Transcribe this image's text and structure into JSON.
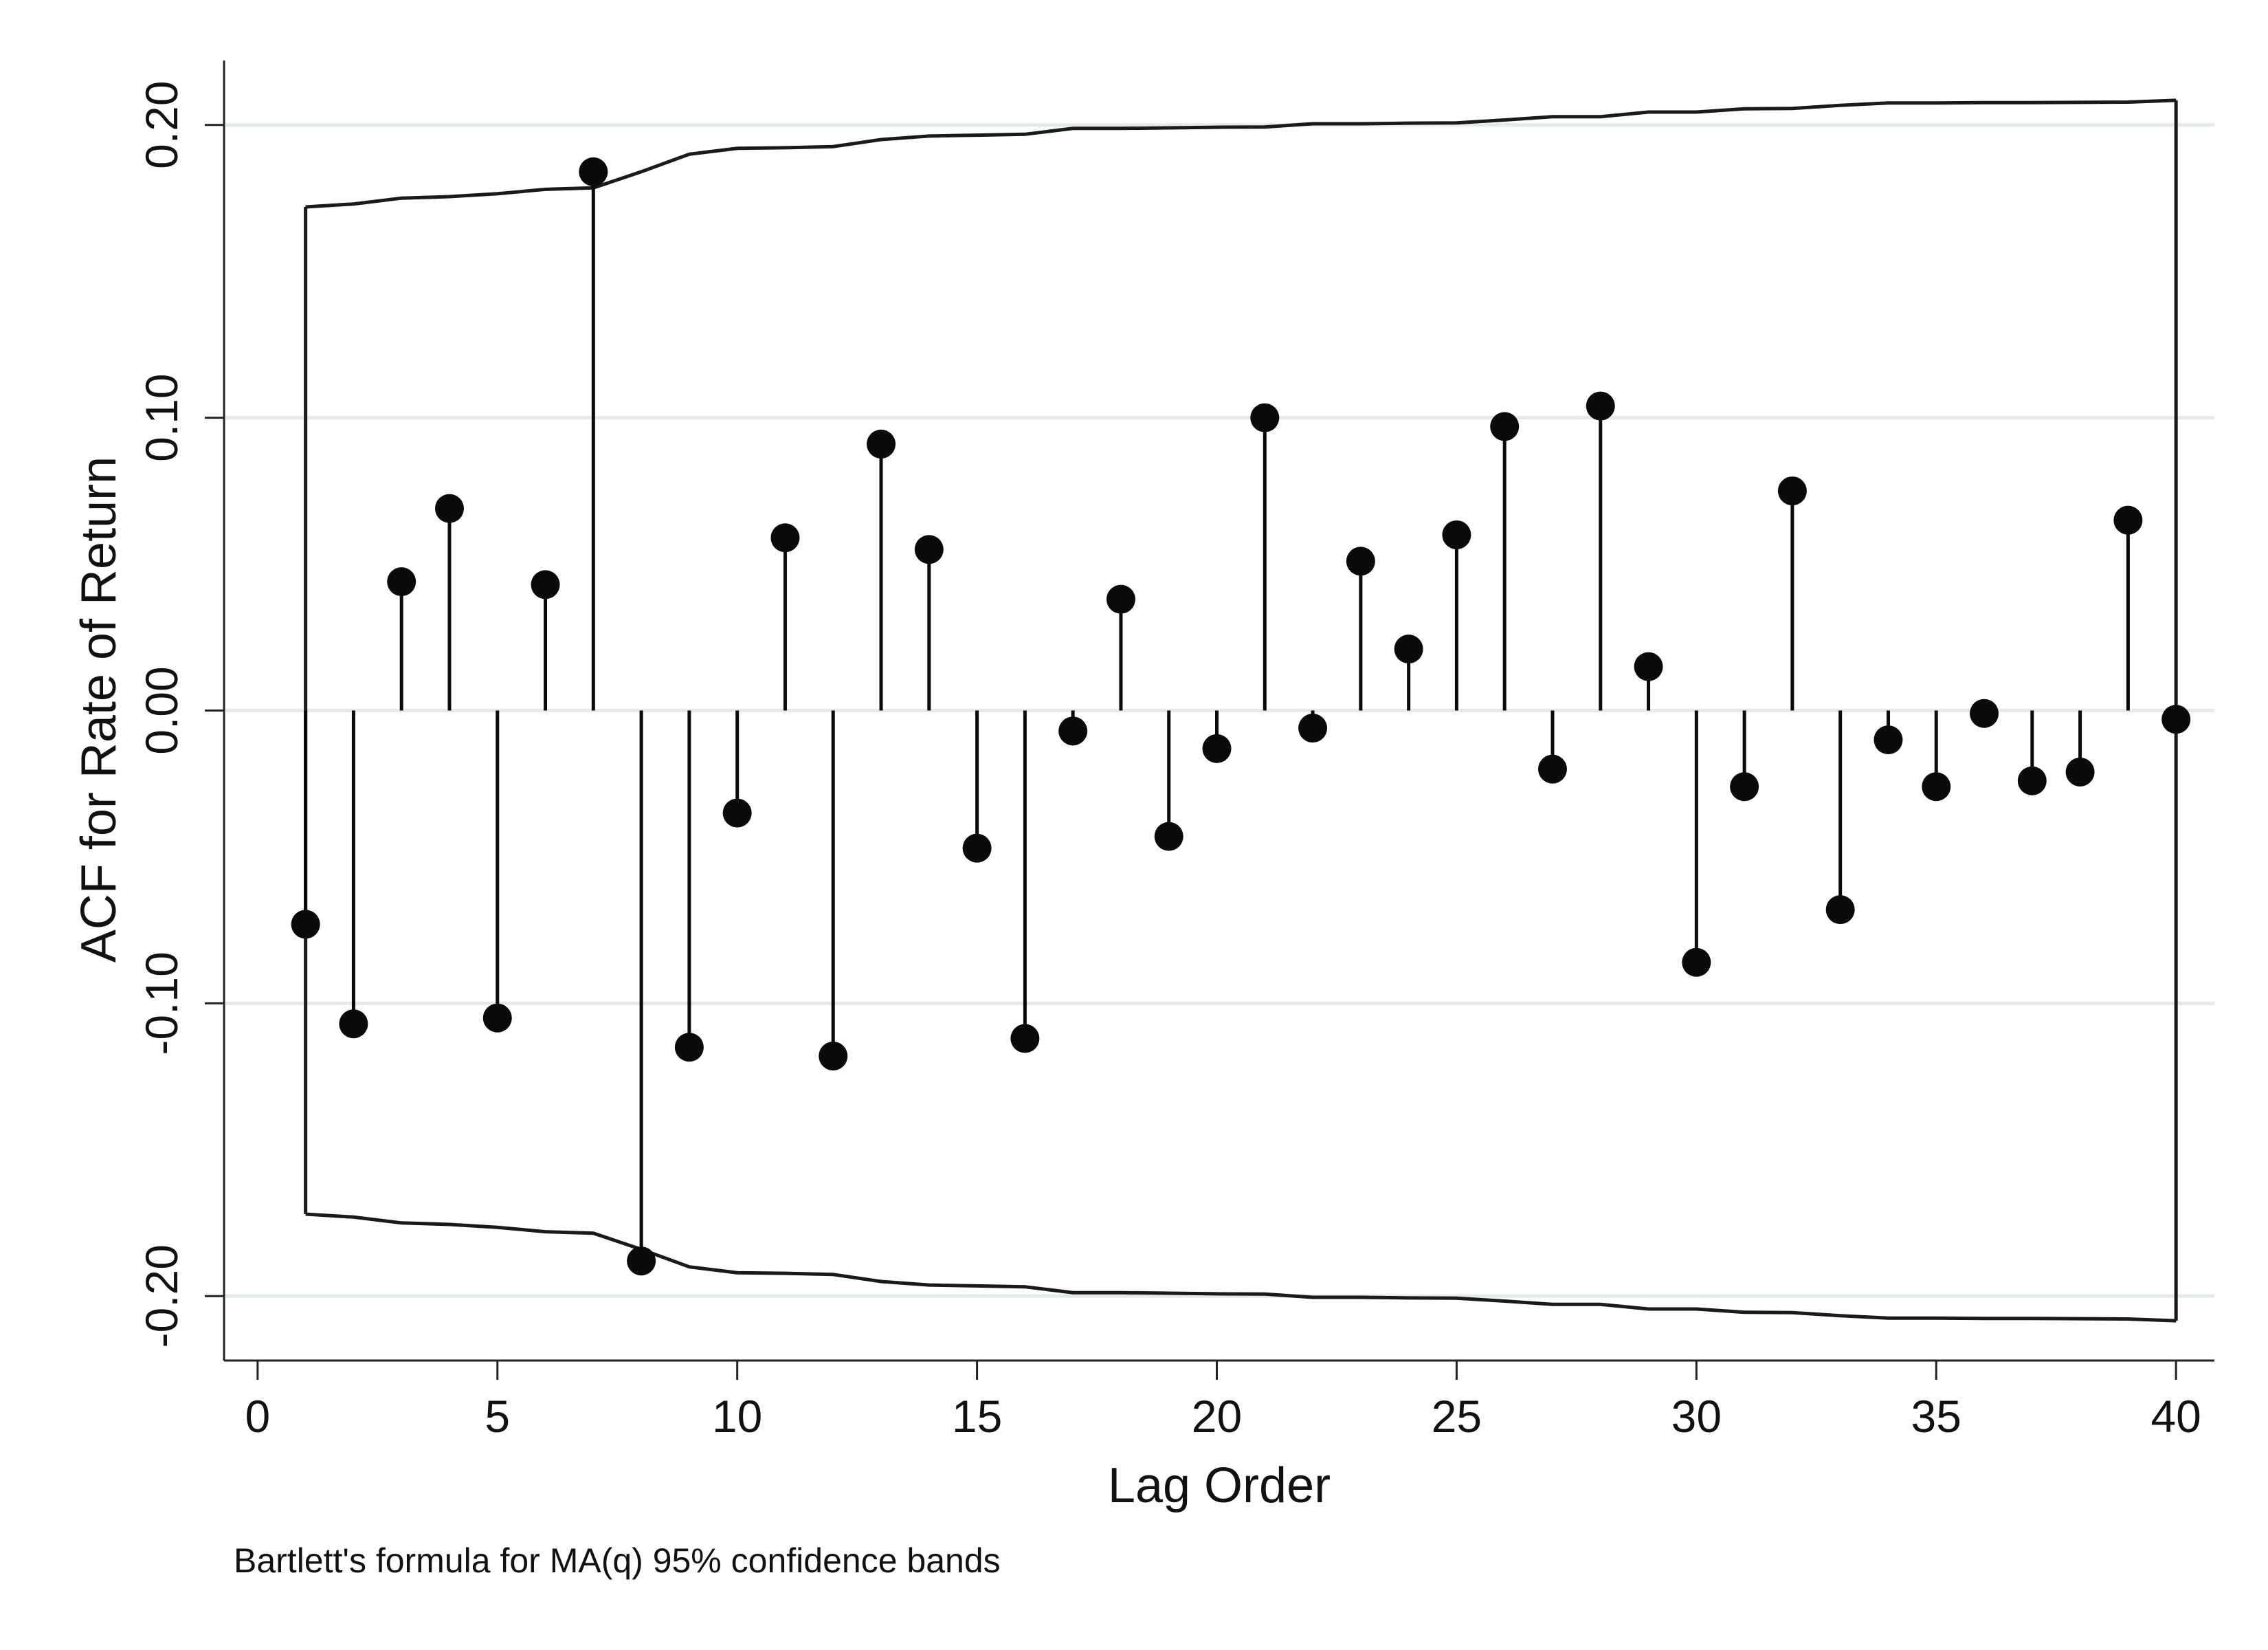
{
  "chart_data": {
    "type": "stem",
    "xlabel": "Lag Order",
    "ylabel": "ACF for Rate of Return",
    "note": "Bartlett's formula for MA(q) 95% confidence bands",
    "xlim": [
      -0.7,
      40.8
    ],
    "ylim": [
      -0.222,
      0.222
    ],
    "x_ticks": [
      0,
      5,
      10,
      15,
      20,
      25,
      30,
      35,
      40
    ],
    "x_tick_labels": [
      "0",
      "5",
      "10",
      "15",
      "20",
      "25",
      "30",
      "35",
      "40"
    ],
    "y_ticks": [
      -0.2,
      -0.1,
      0.0,
      0.1,
      0.2
    ],
    "y_tick_labels": [
      "-0.20",
      "-0.10",
      "0.00",
      "0.10",
      "0.20"
    ],
    "grid": "horizontal",
    "colors": {
      "marker": "#0a0a0a",
      "band": "#1a1a1a",
      "grid": "#e3eaea",
      "axis": "#222222"
    },
    "lags": [
      1,
      2,
      3,
      4,
      5,
      6,
      7,
      8,
      9,
      10,
      11,
      12,
      13,
      14,
      15,
      16,
      17,
      18,
      19,
      20,
      21,
      22,
      23,
      24,
      25,
      26,
      27,
      28,
      29,
      30,
      31,
      32,
      33,
      34,
      35,
      36,
      37,
      38,
      39,
      40
    ],
    "acf": [
      -0.073,
      -0.107,
      0.044,
      0.069,
      -0.105,
      0.043,
      0.184,
      -0.188,
      -0.115,
      -0.035,
      0.059,
      -0.118,
      0.091,
      0.055,
      -0.047,
      -0.112,
      -0.007,
      0.038,
      -0.043,
      -0.013,
      0.1,
      -0.006,
      0.051,
      0.021,
      0.06,
      0.097,
      -0.02,
      0.104,
      0.015,
      -0.086,
      -0.026,
      0.075,
      -0.068,
      -0.01,
      -0.026,
      -0.001,
      -0.024,
      -0.021,
      0.065,
      -0.003
    ],
    "confidence_band": [
      0.172,
      0.173,
      0.175,
      0.1755,
      0.1765,
      0.178,
      0.1785,
      0.184,
      0.19,
      0.192,
      0.1922,
      0.1926,
      0.195,
      0.1962,
      0.1965,
      0.1968,
      0.1988,
      0.1988,
      0.199,
      0.1992,
      0.1993,
      0.2004,
      0.2004,
      0.2006,
      0.2007,
      0.2017,
      0.2028,
      0.2028,
      0.2044,
      0.2044,
      0.2055,
      0.2056,
      0.2067,
      0.2075,
      0.2075,
      0.2076,
      0.2076,
      0.2077,
      0.2078,
      0.2084
    ]
  }
}
